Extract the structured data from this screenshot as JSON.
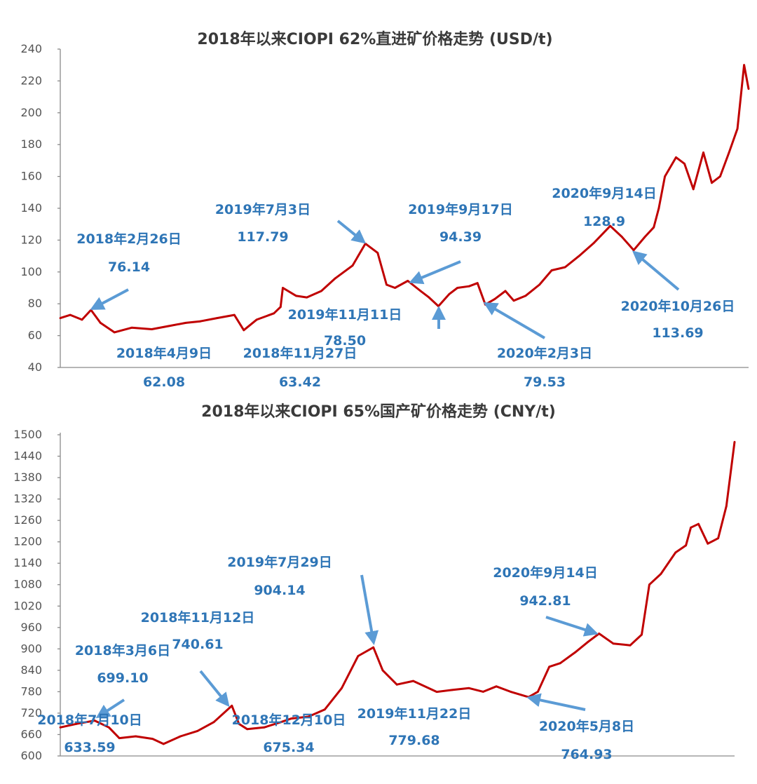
{
  "colors": {
    "line": "#c00000",
    "annotation": "#2e75b6",
    "arrow": "#5b9bd5",
    "axis": "#8a8a8a",
    "title": "#3a3a3a"
  },
  "chart_data": [
    {
      "type": "line",
      "title": "2018年以来CIOPI 62%直进矿价格走势 (USD/t)",
      "xlabel": "",
      "ylabel": "",
      "ylim": [
        40,
        240
      ],
      "yticks": [
        "40",
        "60",
        "80",
        "100",
        "120",
        "140",
        "160",
        "180",
        "200",
        "220",
        "240"
      ],
      "x_range": [
        "2018-01-02",
        "2021-05-20"
      ],
      "grid": false,
      "series": [
        {
          "x": [
            "2018-01-02",
            "2018-01-20",
            "2018-02-10",
            "2018-02-26",
            "2018-03-15",
            "2018-04-09",
            "2018-05-10",
            "2018-06-15",
            "2018-07-15",
            "2018-08-15",
            "2018-09-10",
            "2018-10-10",
            "2018-11-10",
            "2018-11-27",
            "2018-12-20",
            "2019-01-20",
            "2019-02-01",
            "2019-02-05",
            "2019-03-01",
            "2019-03-20",
            "2019-04-15",
            "2019-05-10",
            "2019-06-10",
            "2019-07-03",
            "2019-07-25",
            "2019-08-10",
            "2019-08-25",
            "2019-09-17",
            "2019-10-10",
            "2019-10-25",
            "2019-11-11",
            "2019-11-30",
            "2019-12-15",
            "2020-01-05",
            "2020-01-20",
            "2020-02-03",
            "2020-02-20",
            "2020-03-10",
            "2020-03-25",
            "2020-04-15",
            "2020-05-10",
            "2020-06-01",
            "2020-06-25",
            "2020-07-20",
            "2020-08-15",
            "2020-09-14",
            "2020-10-05",
            "2020-10-26",
            "2020-11-15",
            "2020-12-01",
            "2020-12-10",
            "2020-12-21",
            "2021-01-10",
            "2021-01-25",
            "2021-02-10",
            "2021-02-28",
            "2021-03-15",
            "2021-03-30",
            "2021-04-15",
            "2021-04-30",
            "2021-05-12",
            "2021-05-20"
          ],
          "values": [
            71,
            73,
            70,
            76.14,
            68,
            62.08,
            65,
            64,
            66,
            68,
            69,
            71,
            73,
            63.42,
            70,
            74,
            78,
            90,
            85,
            84,
            88,
            96,
            104,
            117.79,
            112,
            92,
            90,
            94.39,
            88,
            84,
            78.5,
            86,
            90,
            91,
            93,
            79.53,
            83,
            88,
            82,
            85,
            92,
            101,
            103,
            110,
            118,
            128.9,
            122,
            113.69,
            122,
            128,
            140,
            160,
            172,
            168,
            152,
            175,
            156,
            160,
            175,
            190,
            230,
            215
          ]
        }
      ],
      "annotations": [
        {
          "date": "2018年2月26日",
          "value": "76.14"
        },
        {
          "date": "2018年4月9日",
          "value": "62.08"
        },
        {
          "date": "2018年11月27日",
          "value": "63.42"
        },
        {
          "date": "2019年7月3日",
          "value": "117.79"
        },
        {
          "date": "2019年9月17日",
          "value": "94.39"
        },
        {
          "date": "2019年11月11日",
          "value": "78.50"
        },
        {
          "date": "2020年2月3日",
          "value": "79.53"
        },
        {
          "date": "2020年9月14日",
          "value": "128.9"
        },
        {
          "date": "2020年10月26日",
          "value": "113.69"
        }
      ]
    },
    {
      "type": "line",
      "title": "2018年以来CIOPI 65%国产矿价格走势 (CNY/t)",
      "xlabel": "",
      "ylabel": "",
      "ylim": [
        600,
        1500
      ],
      "yticks": [
        "600",
        "660",
        "720",
        "780",
        "840",
        "900",
        "960",
        "1020",
        "1080",
        "1140",
        "1200",
        "1260",
        "1320",
        "1380",
        "1440",
        "1500"
      ],
      "x_range": [
        "2018-01-02",
        "2021-05-20"
      ],
      "grid": false,
      "series": [
        {
          "x": [
            "2018-01-02",
            "2018-02-01",
            "2018-03-06",
            "2018-04-01",
            "2018-04-20",
            "2018-05-20",
            "2018-06-20",
            "2018-07-10",
            "2018-08-10",
            "2018-09-10",
            "2018-10-10",
            "2018-11-12",
            "2018-11-25",
            "2018-12-10",
            "2019-01-10",
            "2019-02-10",
            "2019-03-01",
            "2019-04-01",
            "2019-05-01",
            "2019-06-01",
            "2019-07-01",
            "2019-07-29",
            "2019-08-15",
            "2019-09-10",
            "2019-10-10",
            "2019-11-22",
            "2019-12-20",
            "2020-01-20",
            "2020-02-15",
            "2020-03-10",
            "2020-04-05",
            "2020-05-08",
            "2020-05-25",
            "2020-06-15",
            "2020-07-05",
            "2020-08-01",
            "2020-08-25",
            "2020-09-14",
            "2020-10-10",
            "2020-11-10",
            "2020-12-01",
            "2020-12-15",
            "2021-01-05",
            "2021-02-01",
            "2021-02-20",
            "2021-03-01",
            "2021-03-15",
            "2021-04-01",
            "2021-04-20",
            "2021-05-05",
            "2021-05-20"
          ],
          "values": [
            680,
            690,
            699.1,
            680,
            650,
            655,
            648,
            633.59,
            655,
            670,
            695,
            740.61,
            690,
            675.34,
            680,
            695,
            705,
            710,
            730,
            790,
            880,
            904.14,
            840,
            800,
            810,
            779.68,
            785,
            790,
            780,
            795,
            780,
            764.93,
            780,
            850,
            860,
            890,
            920,
            942.81,
            915,
            910,
            940,
            1080,
            1110,
            1170,
            1190,
            1240,
            1250,
            1195,
            1210,
            1300,
            1480
          ]
        }
      ],
      "annotations": [
        {
          "date": "2018年3月6日",
          "value": "699.10"
        },
        {
          "date": "2018年7月10日",
          "value": "633.59"
        },
        {
          "date": "2018年11月12日",
          "value": "740.61"
        },
        {
          "date": "2018年12月10日",
          "value": "675.34"
        },
        {
          "date": "2019年7月29日",
          "value": "904.14"
        },
        {
          "date": "2019年11月22日",
          "value": "779.68"
        },
        {
          "date": "2020年5月8日",
          "value": "764.93"
        },
        {
          "date": "2020年9月14日",
          "value": "942.81"
        }
      ]
    }
  ]
}
